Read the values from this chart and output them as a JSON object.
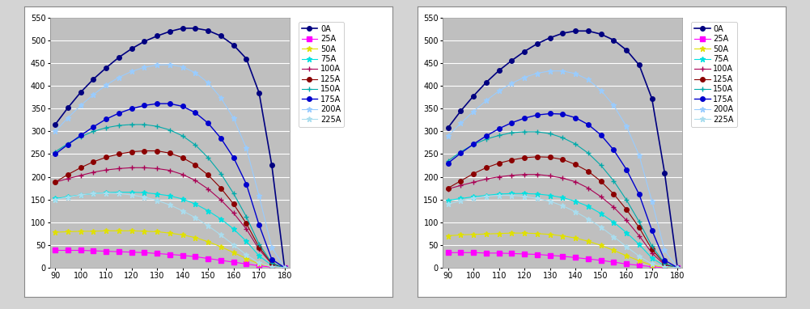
{
  "x_values": [
    90,
    95,
    100,
    105,
    110,
    115,
    120,
    125,
    130,
    135,
    140,
    145,
    150,
    155,
    160,
    165,
    170,
    175,
    180
  ],
  "series": {
    "0A": [
      315,
      352,
      386,
      415,
      440,
      463,
      482,
      498,
      510,
      520,
      527,
      527,
      522,
      510,
      490,
      460,
      385,
      225,
      0
    ],
    "25A": [
      38,
      38,
      38,
      37,
      36,
      35,
      34,
      33,
      31,
      29,
      27,
      24,
      20,
      16,
      12,
      8,
      4,
      1,
      0
    ],
    "50A": [
      78,
      79,
      80,
      80,
      81,
      81,
      81,
      80,
      79,
      76,
      72,
      66,
      57,
      46,
      33,
      20,
      8,
      2,
      0
    ],
    "75A": [
      152,
      156,
      160,
      163,
      165,
      166,
      166,
      165,
      162,
      158,
      151,
      140,
      125,
      107,
      85,
      58,
      26,
      5,
      0
    ],
    "100A": [
      188,
      196,
      203,
      210,
      215,
      218,
      220,
      220,
      218,
      214,
      205,
      192,
      173,
      149,
      120,
      85,
      40,
      8,
      0
    ],
    "125A": [
      188,
      205,
      220,
      233,
      243,
      250,
      255,
      257,
      257,
      252,
      242,
      226,
      204,
      175,
      140,
      97,
      45,
      9,
      0
    ],
    "150A": [
      255,
      273,
      288,
      300,
      308,
      313,
      315,
      315,
      311,
      303,
      290,
      270,
      242,
      207,
      163,
      112,
      52,
      10,
      0
    ],
    "175A": [
      250,
      271,
      291,
      310,
      327,
      340,
      350,
      357,
      361,
      361,
      355,
      341,
      318,
      285,
      242,
      184,
      94,
      18,
      0
    ],
    "200A": [
      300,
      330,
      357,
      381,
      402,
      419,
      432,
      441,
      446,
      447,
      442,
      429,
      407,
      374,
      329,
      263,
      158,
      44,
      0
    ],
    "225A": [
      150,
      155,
      160,
      163,
      164,
      163,
      160,
      155,
      148,
      138,
      125,
      110,
      92,
      72,
      50,
      28,
      10,
      2,
      0
    ]
  },
  "series2": {
    "0A": [
      308,
      345,
      378,
      408,
      434,
      456,
      476,
      493,
      506,
      516,
      521,
      521,
      514,
      501,
      479,
      446,
      372,
      208,
      0
    ],
    "25A": [
      33,
      33,
      33,
      32,
      32,
      31,
      30,
      29,
      27,
      25,
      22,
      19,
      16,
      12,
      8,
      5,
      2,
      0,
      0
    ],
    "50A": [
      70,
      72,
      73,
      74,
      75,
      76,
      76,
      75,
      73,
      70,
      65,
      58,
      49,
      38,
      26,
      15,
      5,
      1,
      0
    ],
    "75A": [
      148,
      152,
      156,
      159,
      162,
      163,
      163,
      162,
      159,
      154,
      146,
      135,
      119,
      100,
      77,
      51,
      21,
      4,
      0
    ],
    "100A": [
      173,
      181,
      188,
      195,
      200,
      203,
      205,
      205,
      202,
      197,
      189,
      175,
      156,
      133,
      104,
      70,
      32,
      6,
      0
    ],
    "125A": [
      175,
      191,
      207,
      220,
      230,
      237,
      242,
      244,
      243,
      238,
      227,
      212,
      190,
      162,
      128,
      88,
      40,
      8,
      0
    ],
    "150A": [
      235,
      255,
      271,
      283,
      291,
      297,
      299,
      299,
      295,
      286,
      272,
      252,
      225,
      191,
      149,
      101,
      47,
      9,
      0
    ],
    "175A": [
      230,
      252,
      272,
      290,
      306,
      319,
      329,
      336,
      339,
      338,
      330,
      315,
      292,
      259,
      216,
      161,
      82,
      16,
      0
    ],
    "200A": [
      290,
      318,
      344,
      368,
      389,
      406,
      419,
      428,
      433,
      433,
      427,
      414,
      390,
      357,
      311,
      247,
      146,
      38,
      0
    ],
    "225A": [
      140,
      147,
      153,
      157,
      159,
      159,
      157,
      152,
      146,
      136,
      123,
      107,
      89,
      68,
      46,
      25,
      8,
      2,
      0
    ]
  },
  "colors": {
    "0A": "#000080",
    "25A": "#FF00FF",
    "50A": "#E0E000",
    "75A": "#00E0E0",
    "100A": "#AA0055",
    "125A": "#8B0000",
    "150A": "#00AAAA",
    "175A": "#0000CD",
    "200A": "#99CCFF",
    "225A": "#AADDEE"
  },
  "markers": {
    "0A": "o",
    "25A": "s",
    "50A": "*",
    "75A": "*",
    "100A": "+",
    "125A": "o",
    "150A": "+",
    "175A": "o",
    "200A": "*",
    "225A": "*"
  },
  "markersizes": {
    "0A": 4,
    "25A": 4,
    "50A": 5,
    "75A": 5,
    "100A": 5,
    "125A": 4,
    "150A": 5,
    "175A": 4,
    "200A": 5,
    "225A": 5
  },
  "linewidths": {
    "0A": 1.2,
    "25A": 0.8,
    "50A": 0.8,
    "75A": 0.8,
    "100A": 0.8,
    "125A": 0.8,
    "150A": 0.8,
    "175A": 1.0,
    "200A": 0.8,
    "225A": 0.8
  },
  "ylim": [
    0,
    550
  ],
  "xlim": [
    88,
    182
  ],
  "xticks": [
    90,
    100,
    110,
    120,
    130,
    140,
    150,
    160,
    170,
    180
  ],
  "yticks": [
    0,
    50,
    100,
    150,
    200,
    250,
    300,
    350,
    400,
    450,
    500,
    550
  ],
  "bg_color": "#BFBFBF",
  "fig_bg_color": "#D4D4D4",
  "panel_bg_color": "#FFFFFF",
  "grid_color": "#FFFFFF",
  "legend_labels": [
    "0A",
    "25A",
    "50A",
    "75A",
    "100A",
    "125A",
    "150A",
    "175A",
    "200A",
    "225A"
  ]
}
